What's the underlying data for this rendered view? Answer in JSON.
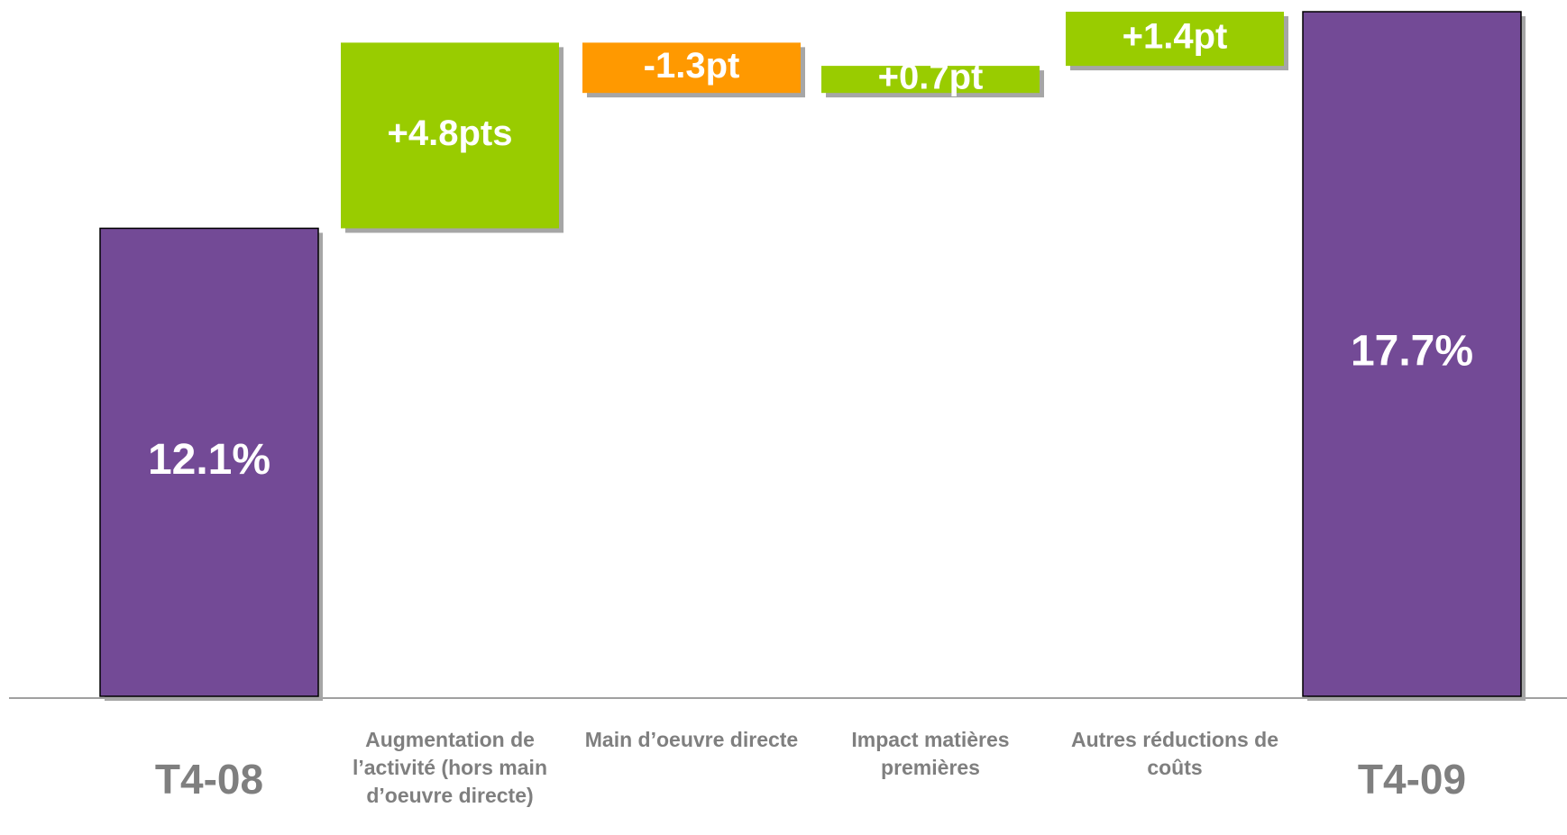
{
  "chart_data": {
    "type": "waterfall",
    "categories": [
      "T4-08",
      "Augmentation de l’activité (hors main d’oeuvre directe)",
      "Main d’oeuvre directe",
      "Impact matières premières",
      "Autres réductions de coûts",
      "T4-09"
    ],
    "values": [
      12.1,
      4.8,
      -1.3,
      0.7,
      1.4,
      17.7
    ],
    "value_labels": [
      "12.1%",
      "+4.8pts",
      "-1.3pt",
      "+0.7pt",
      "+1.4pt",
      "17.7%"
    ],
    "colors": [
      "#734a96",
      "#99cc00",
      "#ff9900",
      "#99cc00",
      "#99cc00",
      "#734a96"
    ]
  }
}
